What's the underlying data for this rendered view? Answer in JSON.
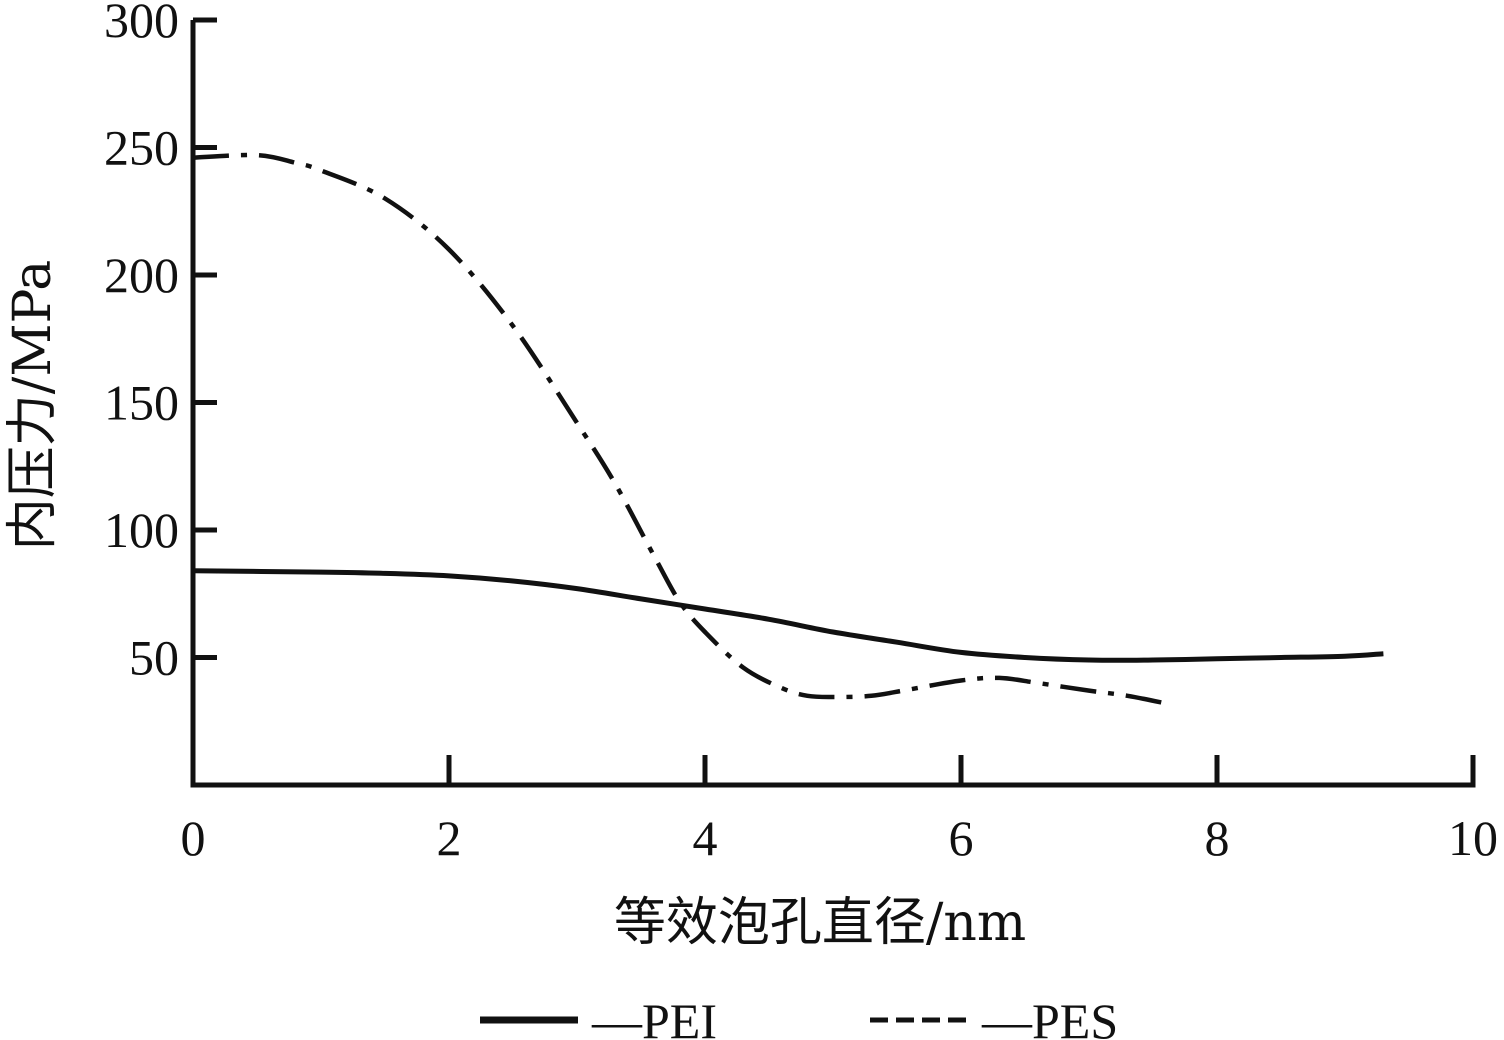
{
  "chart_data": {
    "type": "line",
    "title": "",
    "xlabel": "等效泡孔直径/nm",
    "ylabel": "内压力/MPa",
    "xlim": [
      0,
      10
    ],
    "ylim": [
      0,
      300
    ],
    "xticks": [
      0,
      2,
      4,
      6,
      8,
      10
    ],
    "yticks": [
      50,
      100,
      150,
      200,
      250,
      300
    ],
    "grid": false,
    "legend_position": "bottom",
    "series": [
      {
        "name": "—PEI",
        "style": "solid",
        "color": "#111111",
        "x": [
          0,
          1,
          1.5,
          2,
          2.5,
          3,
          3.5,
          4,
          4.5,
          5,
          5.5,
          6,
          6.5,
          7,
          7.5,
          8,
          8.5,
          9,
          9.3
        ],
        "y": [
          84,
          83.5,
          83,
          82,
          80,
          77,
          73,
          69,
          65,
          60,
          56,
          52,
          50,
          49,
          49,
          49.5,
          50,
          50.5,
          51.5
        ]
      },
      {
        "name": "—PES",
        "style": "dashdot",
        "color": "#111111",
        "x": [
          0,
          0.5,
          0.8,
          1,
          1.5,
          2,
          2.5,
          3,
          3.3,
          3.6,
          3.8,
          4,
          4.3,
          4.6,
          4.8,
          5,
          5.3,
          5.6,
          6,
          6.3,
          6.6,
          7,
          7.3,
          7.6
        ],
        "y": [
          246,
          247,
          244,
          241,
          230,
          210,
          180,
          142,
          118,
          90,
          72,
          60,
          46,
          38,
          35,
          34.5,
          35,
          37.5,
          41,
          42,
          40,
          37,
          35,
          32
        ]
      }
    ]
  }
}
